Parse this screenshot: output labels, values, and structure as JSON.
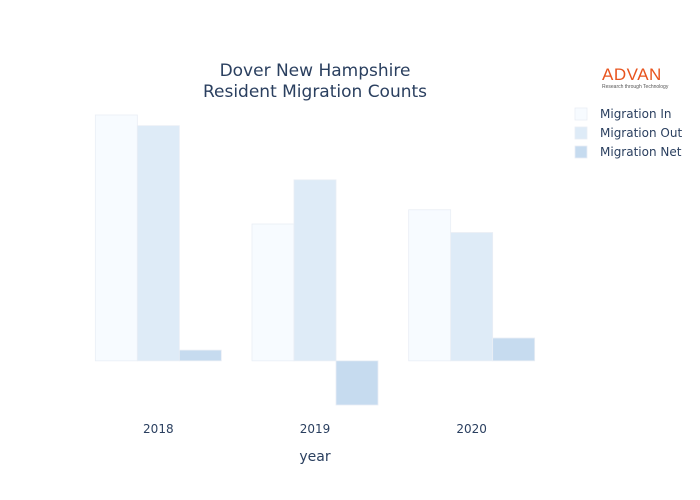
{
  "logo": {
    "name": "ADVAN",
    "tagline": "Research through Technology"
  },
  "chart_data": {
    "type": "bar",
    "title_lines": [
      "Dover New Hampshire",
      "Resident Migration Counts"
    ],
    "xlabel": "year",
    "ylabel": "",
    "categories": [
      "2018",
      "2019",
      "2020"
    ],
    "series": [
      {
        "name": "Migration In",
        "values": [
          3450,
          1920,
          2120
        ],
        "color": "#f7fbff"
      },
      {
        "name": "Migration Out",
        "values": [
          3300,
          2540,
          1800
        ],
        "color": "#deebf7"
      },
      {
        "name": "Migration Net",
        "values": [
          150,
          -620,
          320
        ],
        "color": "#c6dbef"
      }
    ],
    "ylim": [
      -620,
      3450
    ],
    "grid": false,
    "legend_position": "top-right"
  }
}
